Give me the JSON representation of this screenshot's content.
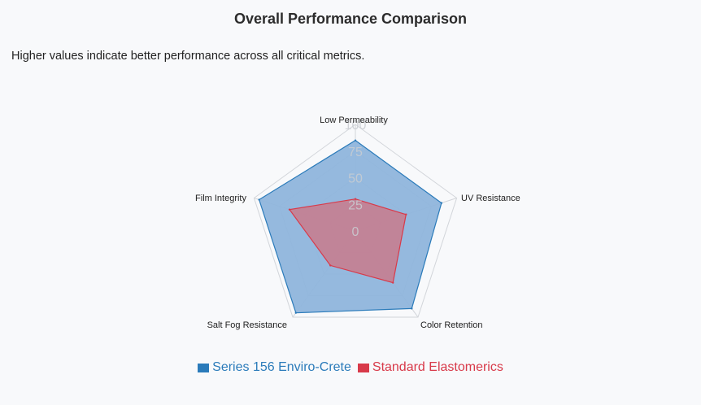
{
  "title": "Overall Performance Comparison",
  "subtitle": "Higher values indicate better performance across all critical metrics.",
  "colors": {
    "series1_stroke": "#2b7bba",
    "series1_fill": "#8fb5dc",
    "series2_stroke": "#d83a4a",
    "series2_fill": "#c97a8c",
    "grid": "#d2d5da",
    "tick": "#c9ccd1"
  },
  "chart_data": {
    "type": "radar",
    "axes": [
      "Low Permeability",
      "UV Resistance",
      "Color Retention",
      "Salt Fog Resistance",
      "Film Integrity"
    ],
    "rmin": 0,
    "rmax": 100,
    "ticks": [
      "0",
      "25",
      "50",
      "75",
      "100"
    ],
    "tick_values": [
      0,
      25,
      50,
      75,
      100
    ],
    "grid": true,
    "legend_position": "bottom",
    "series": [
      {
        "name": "Series 156 Enviro-Crete",
        "values": [
          85,
          85,
          90,
          95,
          95
        ]
      },
      {
        "name": "Standard Elastomerics",
        "values": [
          30,
          50,
          60,
          40,
          65
        ]
      }
    ]
  }
}
